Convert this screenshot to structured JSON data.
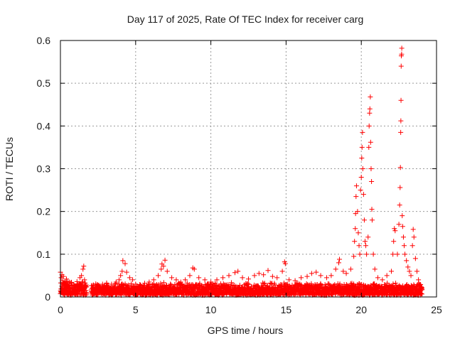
{
  "chart_data": {
    "type": "scatter",
    "title": "Day 117 of 2025, Rate Of TEC Index for receiver carg",
    "xlabel": "GPS time / hours",
    "ylabel": "ROTI / TECUs",
    "xlim": [
      0,
      25
    ],
    "ylim": [
      0,
      0.6
    ],
    "xticks": [
      0,
      5,
      10,
      15,
      20,
      25
    ],
    "yticks": [
      0,
      0.1,
      0.2,
      0.3,
      0.4,
      0.5,
      0.6
    ],
    "grid": true,
    "marker": "+",
    "color": "#ff0000",
    "series": [
      {
        "name": "ROTI",
        "points": [
          [
            0.0,
            0.058
          ],
          [
            0.05,
            0.045
          ],
          [
            0.1,
            0.052
          ],
          [
            0.15,
            0.038
          ],
          [
            0.2,
            0.048
          ],
          [
            0.3,
            0.035
          ],
          [
            0.4,
            0.042
          ],
          [
            0.5,
            0.03
          ],
          [
            0.7,
            0.033
          ],
          [
            0.9,
            0.028
          ],
          [
            1.1,
            0.036
          ],
          [
            1.3,
            0.045
          ],
          [
            1.4,
            0.05
          ],
          [
            1.5,
            0.065
          ],
          [
            1.55,
            0.072
          ],
          [
            1.6,
            0.04
          ],
          [
            1.7,
            0.025
          ],
          [
            2.1,
            0.02
          ],
          [
            2.2,
            0.028
          ],
          [
            2.5,
            0.025
          ],
          [
            2.8,
            0.03
          ],
          [
            3.1,
            0.027
          ],
          [
            3.4,
            0.03
          ],
          [
            3.7,
            0.035
          ],
          [
            3.9,
            0.04
          ],
          [
            4.0,
            0.05
          ],
          [
            4.1,
            0.06
          ],
          [
            4.15,
            0.085
          ],
          [
            4.3,
            0.078
          ],
          [
            4.4,
            0.058
          ],
          [
            4.6,
            0.045
          ],
          [
            4.8,
            0.04
          ],
          [
            5.0,
            0.03
          ],
          [
            5.3,
            0.028
          ],
          [
            5.6,
            0.032
          ],
          [
            5.9,
            0.035
          ],
          [
            6.2,
            0.04
          ],
          [
            6.5,
            0.05
          ],
          [
            6.7,
            0.065
          ],
          [
            6.75,
            0.077
          ],
          [
            6.85,
            0.072
          ],
          [
            6.95,
            0.086
          ],
          [
            7.1,
            0.06
          ],
          [
            7.4,
            0.045
          ],
          [
            7.7,
            0.04
          ],
          [
            8.0,
            0.035
          ],
          [
            8.3,
            0.04
          ],
          [
            8.6,
            0.05
          ],
          [
            8.8,
            0.068
          ],
          [
            8.9,
            0.065
          ],
          [
            9.2,
            0.045
          ],
          [
            9.6,
            0.04
          ],
          [
            10.0,
            0.035
          ],
          [
            10.4,
            0.04
          ],
          [
            10.8,
            0.045
          ],
          [
            11.2,
            0.05
          ],
          [
            11.6,
            0.057
          ],
          [
            11.8,
            0.06
          ],
          [
            12.1,
            0.045
          ],
          [
            12.5,
            0.042
          ],
          [
            12.9,
            0.05
          ],
          [
            13.2,
            0.055
          ],
          [
            13.5,
            0.052
          ],
          [
            13.8,
            0.062
          ],
          [
            14.1,
            0.048
          ],
          [
            14.4,
            0.045
          ],
          [
            14.75,
            0.06
          ],
          [
            14.9,
            0.082
          ],
          [
            14.95,
            0.078
          ],
          [
            15.2,
            0.04
          ],
          [
            15.6,
            0.038
          ],
          [
            16.0,
            0.045
          ],
          [
            16.4,
            0.048
          ],
          [
            16.7,
            0.055
          ],
          [
            17.0,
            0.058
          ],
          [
            17.3,
            0.05
          ],
          [
            17.7,
            0.045
          ],
          [
            18.0,
            0.05
          ],
          [
            18.3,
            0.065
          ],
          [
            18.5,
            0.08
          ],
          [
            18.55,
            0.088
          ],
          [
            18.8,
            0.06
          ],
          [
            19.0,
            0.055
          ],
          [
            19.3,
            0.065
          ],
          [
            19.5,
            0.095
          ],
          [
            19.55,
            0.13
          ],
          [
            19.6,
            0.16
          ],
          [
            19.62,
            0.195
          ],
          [
            19.65,
            0.235
          ],
          [
            19.68,
            0.26
          ],
          [
            19.75,
            0.2
          ],
          [
            19.8,
            0.15
          ],
          [
            19.85,
            0.12
          ],
          [
            19.9,
            0.1
          ],
          [
            19.95,
            0.25
          ],
          [
            20.0,
            0.28
          ],
          [
            20.03,
            0.325
          ],
          [
            20.05,
            0.35
          ],
          [
            20.08,
            0.385
          ],
          [
            20.1,
            0.3
          ],
          [
            20.15,
            0.24
          ],
          [
            20.2,
            0.18
          ],
          [
            20.25,
            0.13
          ],
          [
            20.3,
            0.12
          ],
          [
            20.35,
            0.1
          ],
          [
            20.45,
            0.14
          ],
          [
            20.5,
            0.35
          ],
          [
            20.52,
            0.4
          ],
          [
            20.55,
            0.43
          ],
          [
            20.57,
            0.44
          ],
          [
            20.6,
            0.468
          ],
          [
            20.62,
            0.362
          ],
          [
            20.65,
            0.3
          ],
          [
            20.68,
            0.27
          ],
          [
            20.7,
            0.205
          ],
          [
            20.72,
            0.18
          ],
          [
            20.8,
            0.1
          ],
          [
            20.9,
            0.065
          ],
          [
            21.1,
            0.045
          ],
          [
            21.4,
            0.04
          ],
          [
            21.7,
            0.05
          ],
          [
            22.0,
            0.06
          ],
          [
            22.1,
            0.1
          ],
          [
            22.15,
            0.13
          ],
          [
            22.2,
            0.16
          ],
          [
            22.25,
            0.155
          ],
          [
            22.4,
            0.1
          ],
          [
            22.5,
            0.17
          ],
          [
            22.55,
            0.215
          ],
          [
            22.58,
            0.256
          ],
          [
            22.6,
            0.303
          ],
          [
            22.62,
            0.385
          ],
          [
            22.63,
            0.412
          ],
          [
            22.64,
            0.46
          ],
          [
            22.65,
            0.54
          ],
          [
            22.66,
            0.564
          ],
          [
            22.68,
            0.568
          ],
          [
            22.69,
            0.582
          ],
          [
            22.72,
            0.19
          ],
          [
            22.75,
            0.165
          ],
          [
            22.8,
            0.14
          ],
          [
            22.85,
            0.12
          ],
          [
            22.9,
            0.1
          ],
          [
            23.0,
            0.085
          ],
          [
            23.1,
            0.07
          ],
          [
            23.2,
            0.06
          ],
          [
            23.3,
            0.05
          ],
          [
            23.4,
            0.12
          ],
          [
            23.45,
            0.158
          ],
          [
            23.5,
            0.14
          ],
          [
            23.6,
            0.09
          ],
          [
            23.7,
            0.06
          ],
          [
            23.8,
            0.04
          ],
          [
            23.9,
            0.025
          ],
          [
            24.0,
            0.02
          ]
        ],
        "baseline_noise": {
          "segments": [
            {
              "x_start": 0.0,
              "x_end": 1.75,
              "y_max": 0.035
            },
            {
              "x_start": 2.05,
              "x_end": 24.05,
              "y_max": 0.03
            }
          ]
        }
      }
    ]
  }
}
